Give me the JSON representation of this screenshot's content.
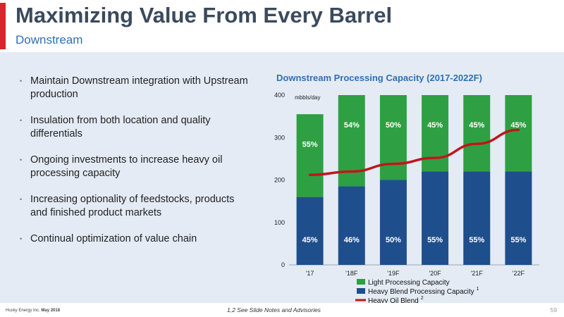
{
  "header": {
    "title": "Maximizing Value From Every Barrel",
    "subtitle": "Downstream"
  },
  "bullets": [
    "Maintain Downstream integration with Upstream production",
    "Insulation from both location and quality differentials",
    "Ongoing investments to increase heavy oil processing capacity",
    "Increasing optionality of feedstocks, products and finished product markets",
    "Continual optimization of value chain"
  ],
  "bullet_marker": "•",
  "chart_title": "Downstream Processing Capacity (2017-2022F)",
  "chart_data": {
    "type": "bar",
    "stacked": true,
    "unit_label": "mbbls/day",
    "categories": [
      "'17",
      "'18F",
      "'19F",
      "'20F",
      "'21F",
      "'22F"
    ],
    "ylim": [
      0,
      400
    ],
    "yticks": [
      0,
      100,
      200,
      300,
      400
    ],
    "series": [
      {
        "name": "Heavy Blend Processing Capacity",
        "superscript": "1",
        "type": "bar",
        "color": "#1f4e8c",
        "values": [
          160,
          185,
          200,
          220,
          220,
          220
        ],
        "labels": [
          "45%",
          "46%",
          "50%",
          "55%",
          "55%",
          "55%"
        ]
      },
      {
        "name": "Light Processing Capacity",
        "superscript": "",
        "type": "bar",
        "color": "#2ea043",
        "values": [
          195,
          215,
          200,
          180,
          180,
          180
        ],
        "labels": [
          "55%",
          "54%",
          "50%",
          "45%",
          "45%",
          "45%"
        ]
      },
      {
        "name": "Heavy Oil Blend",
        "superscript": "2",
        "type": "line",
        "color": "#c0161c",
        "values": [
          212,
          220,
          238,
          252,
          285,
          318
        ]
      }
    ],
    "legend_order": [
      1,
      0,
      2
    ],
    "legend_position": "bottom"
  },
  "footer": {
    "company": "Husky Energy Inc.",
    "date": "May 2018",
    "note": "1,2 See Slide Notes and Advisories",
    "page": "59"
  }
}
